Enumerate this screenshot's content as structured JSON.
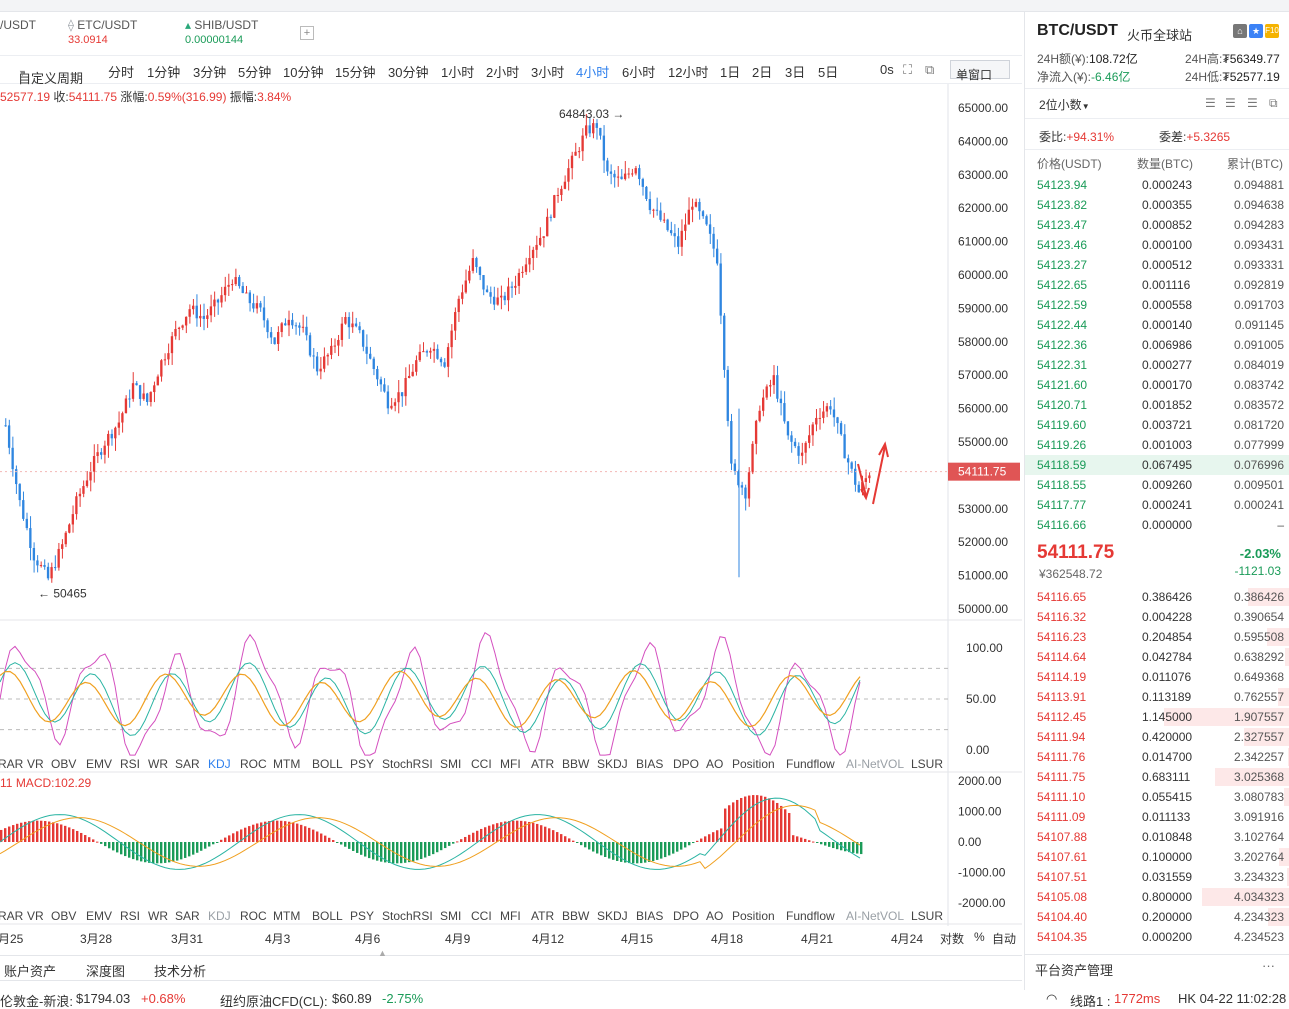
{
  "tickers": [
    {
      "name": "/USDT",
      "price": ""
    },
    {
      "name": "ETC/USDT",
      "price": "33.0914"
    },
    {
      "name": "SHIB/USDT",
      "price": "0.00000144"
    }
  ],
  "periods": [
    "自定义周期",
    "分时",
    "1分钟",
    "3分钟",
    "5分钟",
    "10分钟",
    "15分钟",
    "30分钟",
    "1小时",
    "2小时",
    "3小时",
    "4小时",
    "6小时",
    "12小时",
    "1日",
    "2日",
    "3日",
    "5日"
  ],
  "active_period": "4小时",
  "toolbar": {
    "zero_s": "0s",
    "window_mode": "单窗口"
  },
  "info": {
    "open_frag": "52577.19",
    "close_label": "收:",
    "close": "54111.75",
    "chg_label": "涨幅:",
    "chg": "0.59%(316.99)",
    "amp_label": "振幅:",
    "amp": "3.84%"
  },
  "indicators": [
    "RAR",
    "VR",
    "OBV",
    "EMV",
    "RSI",
    "WR",
    "SAR",
    "KDJ",
    "ROC",
    "MTM",
    "BOLL",
    "PSY",
    "StochRSI",
    "SMI",
    "CCI",
    "MFI",
    "ATR",
    "BBW",
    "SKDJ",
    "BIAS",
    "DPO",
    "AO",
    "Position",
    "Fundflow",
    "AI-NetVOL",
    "LSUR"
  ],
  "active_indicator": "KDJ",
  "macd": {
    "prefix": "11",
    "label": "MACD:102.29"
  },
  "dates": [
    "月25",
    "3月28",
    "3月31",
    "4月3",
    "4月6",
    "4月9",
    "4月12",
    "4月15",
    "4月18",
    "4月21",
    "4月24"
  ],
  "axis_opts": [
    "对数",
    "%",
    "自动"
  ],
  "bottom_tabs": [
    "账户资产",
    "深度图",
    "技术分析"
  ],
  "status": {
    "gold_name": "伦敦金-新浪:",
    "gold_price": "$1794.03",
    "gold_chg": "+0.68%",
    "oil_name": "纽约原油CFD(CL):",
    "oil_price": "$60.89",
    "oil_chg": "-2.75%",
    "line_label": "线路1 :",
    "latency": "1772ms",
    "clock": "HK 04-22 11:02:28"
  },
  "right_panel": {
    "pair": "BTC/USDT",
    "exchange": "火币全球站",
    "vol_label": "24H额(¥):",
    "vol": "108.72亿",
    "high_label": "24H高:",
    "high": "₮56349.77",
    "inflow_label": "净流入(¥):",
    "inflow": "-6.46亿",
    "low_label": "24H低:",
    "low": "₮52577.19",
    "decimals": "2位小数",
    "ratio_label": "委比:",
    "ratio": "+94.31%",
    "diff_label": "委差:",
    "diff": "+5.3265",
    "headers": [
      "价格(USDT)",
      "数量(BTC)",
      "累计(BTC)"
    ],
    "last_price": "54111.75",
    "last_cny": "¥362548.72",
    "change_pct": "-2.03%",
    "change_abs": "-1121.03",
    "platform": "平台资产管理",
    "more": "···"
  },
  "bids": [
    [
      "54123.94",
      "0.000243",
      "0.094881"
    ],
    [
      "54123.82",
      "0.000355",
      "0.094638"
    ],
    [
      "54123.47",
      "0.000852",
      "0.094283"
    ],
    [
      "54123.46",
      "0.000100",
      "0.093431"
    ],
    [
      "54123.27",
      "0.000512",
      "0.093331"
    ],
    [
      "54122.65",
      "0.001116",
      "0.092819"
    ],
    [
      "54122.59",
      "0.000558",
      "0.091703"
    ],
    [
      "54122.44",
      "0.000140",
      "0.091145"
    ],
    [
      "54122.36",
      "0.006986",
      "0.091005"
    ],
    [
      "54122.31",
      "0.000277",
      "0.084019"
    ],
    [
      "54121.60",
      "0.000170",
      "0.083742"
    ],
    [
      "54120.71",
      "0.001852",
      "0.083572"
    ],
    [
      "54119.60",
      "0.003721",
      "0.081720"
    ],
    [
      "54119.26",
      "0.001003",
      "0.077999"
    ],
    [
      "54118.59",
      "0.067495",
      "0.076996"
    ],
    [
      "54118.55",
      "0.009260",
      "0.009501"
    ],
    [
      "54117.77",
      "0.000241",
      "0.000241"
    ],
    [
      "54116.66",
      "0.000000",
      "–"
    ]
  ],
  "asks": [
    [
      "54116.65",
      "0.386426",
      "0.386426"
    ],
    [
      "54116.32",
      "0.004228",
      "0.390654"
    ],
    [
      "54116.23",
      "0.204854",
      "0.595508"
    ],
    [
      "54114.64",
      "0.042784",
      "0.638292"
    ],
    [
      "54114.19",
      "0.011076",
      "0.649368"
    ],
    [
      "54113.91",
      "0.113189",
      "0.762557"
    ],
    [
      "54112.45",
      "1.145000",
      "1.907557"
    ],
    [
      "54111.94",
      "0.420000",
      "2.327557"
    ],
    [
      "54111.76",
      "0.014700",
      "2.342257"
    ],
    [
      "54111.75",
      "0.683111",
      "3.025368"
    ],
    [
      "54111.10",
      "0.055415",
      "3.080783"
    ],
    [
      "54111.09",
      "0.011133",
      "3.091916"
    ],
    [
      "54107.88",
      "0.010848",
      "3.102764"
    ],
    [
      "54107.61",
      "0.100000",
      "3.202764"
    ],
    [
      "54107.51",
      "0.031559",
      "3.234323"
    ],
    [
      "54105.08",
      "0.800000",
      "4.034323"
    ],
    [
      "54104.40",
      "0.200000",
      "4.234323"
    ],
    [
      "54104.35",
      "0.000200",
      "4.234523"
    ]
  ],
  "chart_data": {
    "type": "candlestick",
    "interval": "4小时",
    "y_ticks": [
      65000,
      64000,
      63000,
      62000,
      61000,
      60000,
      59000,
      58000,
      57000,
      56000,
      55000,
      54000,
      53000,
      52000,
      51000,
      50000
    ],
    "ylim": [
      49800,
      65500
    ],
    "last_price_label": "54111.75",
    "high_annotation": "64843.03",
    "low_annotation": "50465",
    "kdj_ticks": [
      "100.00",
      "50.00",
      "0.00"
    ],
    "macd_ticks": [
      "2000.00",
      "1000.00",
      "0.00",
      "-1000.00",
      "-2000.00"
    ],
    "close_path": [
      [
        0,
        55500
      ],
      [
        8,
        53200
      ],
      [
        16,
        51600
      ],
      [
        24,
        50900
      ],
      [
        32,
        51900
      ],
      [
        40,
        53200
      ],
      [
        48,
        54200
      ],
      [
        56,
        55000
      ],
      [
        64,
        55600
      ],
      [
        72,
        56700
      ],
      [
        80,
        56200
      ],
      [
        88,
        57400
      ],
      [
        96,
        58300
      ],
      [
        104,
        59000
      ],
      [
        112,
        58700
      ],
      [
        120,
        59200
      ],
      [
        128,
        59900
      ],
      [
        136,
        59300
      ],
      [
        144,
        58900
      ],
      [
        152,
        58000
      ],
      [
        160,
        58800
      ],
      [
        168,
        58300
      ],
      [
        176,
        57200
      ],
      [
        184,
        57700
      ],
      [
        192,
        58700
      ],
      [
        200,
        58200
      ],
      [
        208,
        57200
      ],
      [
        216,
        56200
      ],
      [
        224,
        56500
      ],
      [
        232,
        57400
      ],
      [
        240,
        57900
      ],
      [
        248,
        57400
      ],
      [
        256,
        59300
      ],
      [
        264,
        60400
      ],
      [
        272,
        59400
      ],
      [
        280,
        59200
      ],
      [
        288,
        59800
      ],
      [
        296,
        60700
      ],
      [
        304,
        61300
      ],
      [
        312,
        62500
      ],
      [
        320,
        63400
      ],
      [
        328,
        64300
      ],
      [
        334,
        64500
      ],
      [
        340,
        63000
      ],
      [
        348,
        62800
      ],
      [
        356,
        63300
      ],
      [
        364,
        62100
      ],
      [
        372,
        61500
      ],
      [
        380,
        60900
      ],
      [
        388,
        62200
      ],
      [
        396,
        61400
      ],
      [
        402,
        60500
      ],
      [
        410,
        54200
      ],
      [
        418,
        53500
      ],
      [
        426,
        56100
      ],
      [
        434,
        56900
      ],
      [
        442,
        55100
      ],
      [
        450,
        54600
      ],
      [
        458,
        55800
      ],
      [
        466,
        56100
      ],
      [
        474,
        54700
      ],
      [
        482,
        53500
      ],
      [
        490,
        54300
      ]
    ]
  }
}
